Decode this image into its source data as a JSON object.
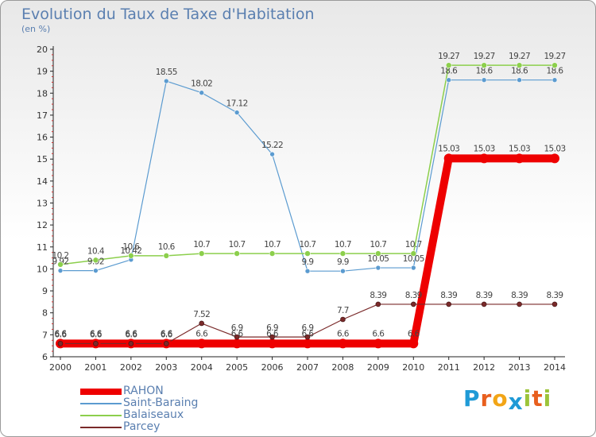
{
  "title": "Evolution du Taux de Taxe d'Habitation",
  "subtitle": "(en %)",
  "logo": {
    "letters": [
      "P",
      "r",
      "o",
      "x",
      "i",
      "t",
      "i"
    ],
    "colors": [
      "#1f9ad6",
      "#e85f1e",
      "#f2a516",
      "#1f9ad6",
      "#9cc43a",
      "#e85f1e",
      "#9cc43a"
    ]
  },
  "chart_data": {
    "type": "line",
    "x": [
      "2000",
      "2001",
      "2002",
      "2003",
      "2004",
      "2005",
      "2006",
      "2007",
      "2008",
      "2009",
      "2010",
      "2011",
      "2012",
      "2013",
      "2014"
    ],
    "ylim": [
      6,
      20
    ],
    "yticks": [
      "6",
      "7",
      "8",
      "9",
      "10",
      "11",
      "12",
      "13",
      "14",
      "15",
      "16",
      "17",
      "18",
      "19",
      "20"
    ],
    "grid": false,
    "legend_position": "bottom-left",
    "series": [
      {
        "name": "RAHON",
        "color": "#ee0000",
        "width": 10,
        "marker_r": 6,
        "values": [
          6.6,
          6.6,
          6.6,
          6.6,
          6.6,
          6.6,
          6.6,
          6.6,
          6.6,
          6.6,
          6.6,
          15.03,
          15.03,
          15.03,
          15.03
        ],
        "labels": [
          "6.6",
          "6.6",
          "6.6",
          "6.6",
          "6.6",
          "6.6",
          "6.6",
          "6.6",
          "6.6",
          "6.6",
          "6.6",
          "15.03",
          "15.03",
          "15.03",
          "15.03"
        ]
      },
      {
        "name": "Saint-Baraing",
        "color": "#5b9bd0",
        "width": 1.2,
        "marker_r": 3,
        "values": [
          9.92,
          9.92,
          10.42,
          18.55,
          18.02,
          17.12,
          15.22,
          9.9,
          9.9,
          10.05,
          10.05,
          18.6,
          18.6,
          18.6,
          18.6
        ],
        "labels": [
          "9.92",
          "9.92",
          "10.42",
          "18.55",
          "18.02",
          "17.12",
          "15.22",
          "9.9",
          "9.9",
          "10.05",
          "10.05",
          "18.6",
          "18.6",
          "18.6",
          "18.6"
        ]
      },
      {
        "name": "Balaiseaux",
        "color": "#8ccf4c",
        "width": 1.5,
        "marker_r": 3.5,
        "values": [
          10.2,
          10.4,
          10.6,
          10.6,
          10.7,
          10.7,
          10.7,
          10.7,
          10.7,
          10.7,
          10.7,
          19.27,
          19.27,
          19.27,
          19.27
        ],
        "labels": [
          "10.2",
          "10.4",
          "10.6",
          "10.6",
          "10.7",
          "10.7",
          "10.7",
          "10.7",
          "10.7",
          "10.7",
          "10.7",
          "19.27",
          "19.27",
          "19.27",
          "19.27"
        ]
      },
      {
        "name": "Parcey",
        "color": "#7a2a2a",
        "width": 1.2,
        "marker_r": 3,
        "values": [
          6.6,
          6.6,
          6.6,
          6.6,
          7.52,
          6.9,
          6.9,
          6.9,
          7.7,
          8.39,
          8.39,
          8.39,
          8.39,
          8.39,
          8.39
        ],
        "labels": [
          "6.6",
          "6.6",
          "6.6",
          "6.6",
          "7.52",
          "6.9",
          "6.9",
          "6.9",
          "7.7",
          "8.39",
          "8.39",
          "8.39",
          "8.39",
          "8.39",
          "8.39"
        ]
      }
    ]
  }
}
